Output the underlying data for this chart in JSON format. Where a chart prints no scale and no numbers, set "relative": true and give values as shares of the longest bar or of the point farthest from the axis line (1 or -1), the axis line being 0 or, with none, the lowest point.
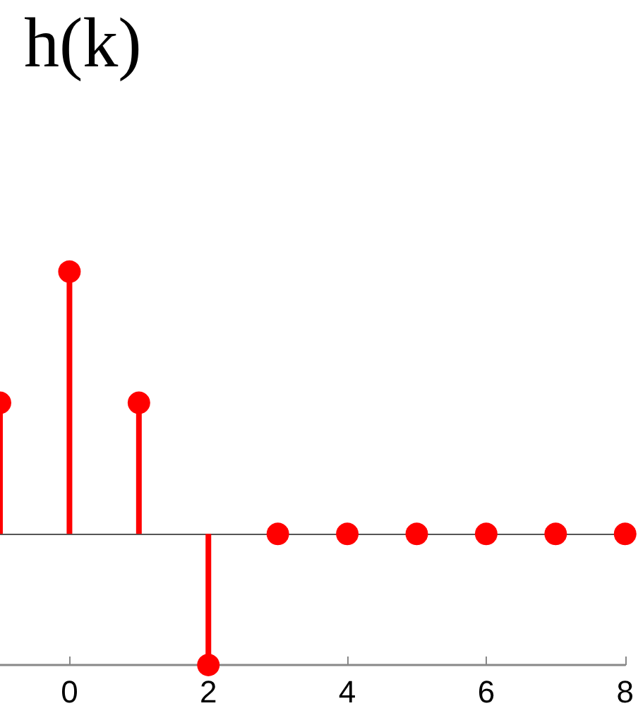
{
  "chart_data": {
    "type": "lollipop",
    "title": "h(k)",
    "x": [
      -1,
      0,
      1,
      2,
      3,
      4,
      5,
      6,
      7,
      8
    ],
    "values": [
      0.5,
      1,
      0.5,
      -0.5,
      0,
      0,
      0,
      0,
      0,
      0
    ],
    "color": "#ff0000",
    "relative": true,
    "xlim": [
      -1,
      8
    ],
    "xticks": [
      0,
      2,
      4,
      6,
      8
    ],
    "marker": "circle"
  }
}
